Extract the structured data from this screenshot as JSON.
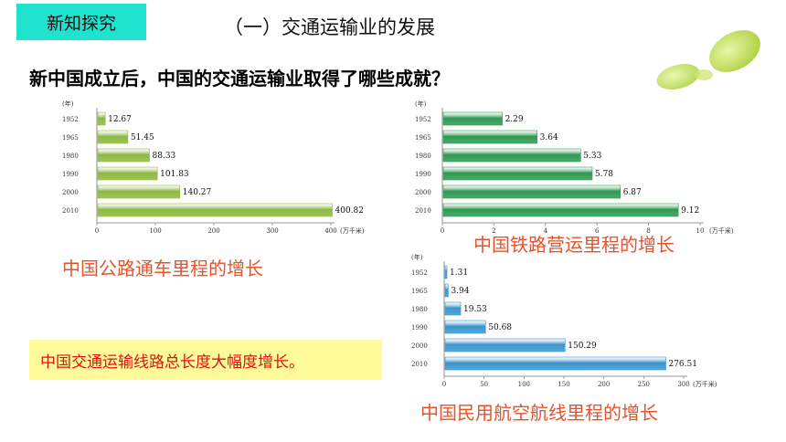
{
  "header": {
    "badge": "新知探究",
    "section_title": "（一）交通运输业的发展",
    "question": "新中国成立后，中国的交通运输业取得了哪些成就？"
  },
  "summary": "中国交通运输线路总长度大幅度增长。",
  "colors": {
    "badge_bg": "#1fe3cf",
    "caption": "#e8522a",
    "summary_bg": "#fffb9a",
    "summary_text": "#e01010"
  },
  "chart_data": [
    {
      "type": "bar",
      "orientation": "horizontal",
      "caption": "中国公路通车里程的增长",
      "y_unit_label": "(年)",
      "x_unit_label": "(万千米)",
      "categories": [
        "1952",
        "1965",
        "1980",
        "1990",
        "2000",
        "2010"
      ],
      "values": [
        12.67,
        51.45,
        88.33,
        101.83,
        140.27,
        400.82
      ],
      "value_labels": [
        "12.67",
        "51.45",
        "88.33",
        "101.83",
        "140.27",
        "400.82"
      ],
      "xlim": [
        0,
        400
      ],
      "xticks": [
        0,
        100,
        200,
        300,
        400
      ],
      "color": "#8fb840"
    },
    {
      "type": "bar",
      "orientation": "horizontal",
      "caption": "中国铁路营运里程的增长",
      "y_unit_label": "(年)",
      "x_unit_label": "(万千米)",
      "categories": [
        "1952",
        "1965",
        "1980",
        "1990",
        "2000",
        "2010"
      ],
      "values": [
        2.29,
        3.64,
        5.33,
        5.78,
        6.87,
        9.12
      ],
      "value_labels": [
        "2.29",
        "3.64",
        "5.33",
        "5.78",
        "6.87",
        "9.12"
      ],
      "xlim": [
        0,
        10
      ],
      "xticks": [
        0,
        2,
        4,
        6,
        8,
        10
      ],
      "color": "#2e9a52"
    },
    {
      "type": "bar",
      "orientation": "horizontal",
      "caption": "中国民用航空航线里程的增长",
      "y_unit_label": "(年)",
      "x_unit_label": "(万千米)",
      "categories": [
        "1952",
        "1965",
        "1980",
        "1990",
        "2000",
        "2010"
      ],
      "values": [
        1.31,
        3.94,
        19.53,
        50.68,
        150.29,
        276.51
      ],
      "value_labels": [
        "1.31",
        "3.94",
        "19.53",
        "50.68",
        "150.29",
        "276.51"
      ],
      "xlim": [
        0,
        300
      ],
      "xticks": [
        0,
        50,
        100,
        150,
        200,
        250,
        300
      ],
      "color": "#3a96cf"
    }
  ]
}
